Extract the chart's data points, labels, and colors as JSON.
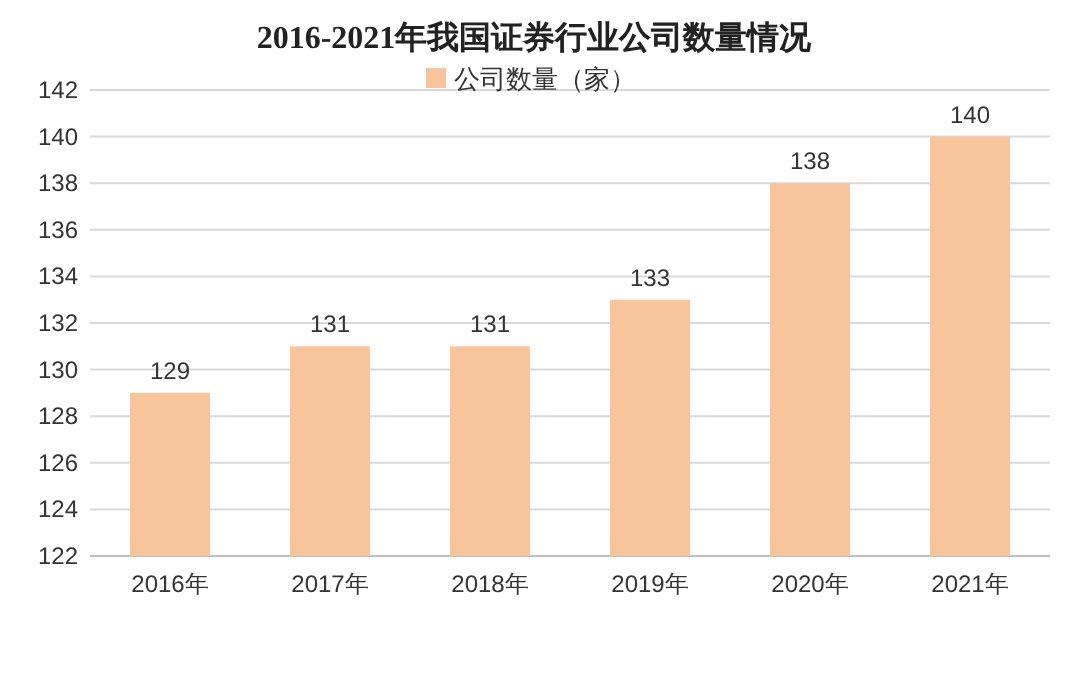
{
  "chart_data": {
    "type": "bar",
    "title": "2016-2021年我国证券行业公司数量情况",
    "categories": [
      "2016年",
      "2017年",
      "2018年",
      "2019年",
      "2020年",
      "2021年"
    ],
    "series": [
      {
        "name": "公司数量（家）",
        "color": "#f8c49c",
        "values": [
          129,
          131,
          131,
          133,
          138,
          140
        ]
      }
    ],
    "ylim": [
      122,
      142
    ],
    "yticks": [
      122,
      124,
      126,
      128,
      130,
      132,
      134,
      136,
      138,
      140,
      142
    ],
    "grid": "y",
    "legend": "top",
    "data_labels": true
  }
}
